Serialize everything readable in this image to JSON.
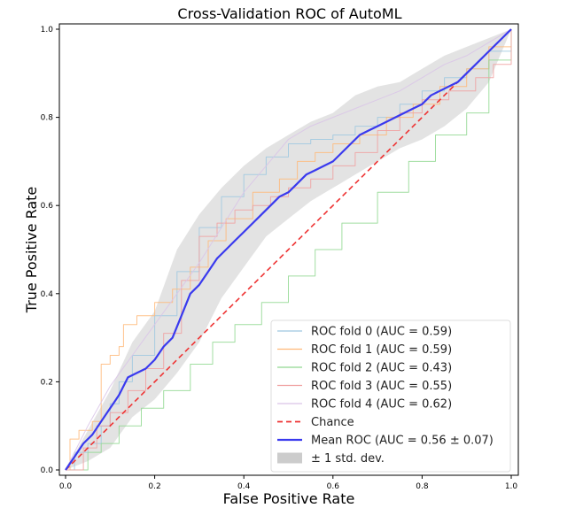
{
  "chart_data": {
    "type": "line",
    "title": "Cross-Validation ROC of AutoML",
    "xlabel": "False Positive Rate",
    "ylabel": "True Positive Rate",
    "xlim": [
      0.0,
      1.0
    ],
    "ylim": [
      0.0,
      1.0
    ],
    "xticks": [
      "0.0",
      "0.2",
      "0.4",
      "0.6",
      "0.8",
      "1.0"
    ],
    "yticks": [
      "0.0",
      "0.2",
      "0.4",
      "0.6",
      "0.8",
      "1.0"
    ],
    "grid": false,
    "legend_position": "lower-right",
    "series": [
      {
        "name": "ROC fold 0 (AUC = 0.59)",
        "color": "#9ec8e0",
        "style": "step",
        "x": [
          0.0,
          0.02,
          0.05,
          0.08,
          0.1,
          0.12,
          0.15,
          0.2,
          0.25,
          0.3,
          0.35,
          0.4,
          0.45,
          0.5,
          0.55,
          0.6,
          0.65,
          0.7,
          0.75,
          0.8,
          0.85,
          0.9,
          0.95,
          1.0
        ],
        "y": [
          0.0,
          0.04,
          0.06,
          0.1,
          0.15,
          0.2,
          0.26,
          0.35,
          0.45,
          0.55,
          0.62,
          0.67,
          0.71,
          0.74,
          0.75,
          0.76,
          0.78,
          0.8,
          0.83,
          0.86,
          0.89,
          0.91,
          0.95,
          1.0
        ]
      },
      {
        "name": "ROC fold 1 (AUC = 0.59)",
        "color": "#ffb878",
        "style": "step",
        "x": [
          0.0,
          0.01,
          0.03,
          0.06,
          0.08,
          0.1,
          0.12,
          0.13,
          0.16,
          0.2,
          0.24,
          0.28,
          0.32,
          0.36,
          0.42,
          0.48,
          0.52,
          0.56,
          0.6,
          0.66,
          0.72,
          0.78,
          0.84,
          0.9,
          0.95,
          1.0
        ],
        "y": [
          0.0,
          0.07,
          0.09,
          0.11,
          0.24,
          0.26,
          0.28,
          0.33,
          0.35,
          0.38,
          0.41,
          0.46,
          0.52,
          0.57,
          0.63,
          0.66,
          0.7,
          0.72,
          0.74,
          0.76,
          0.8,
          0.83,
          0.87,
          0.91,
          0.96,
          1.0
        ]
      },
      {
        "name": "ROC fold 2 (AUC = 0.43)",
        "color": "#90d890",
        "style": "step",
        "x": [
          0.0,
          0.05,
          0.08,
          0.12,
          0.17,
          0.22,
          0.28,
          0.33,
          0.38,
          0.44,
          0.5,
          0.56,
          0.62,
          0.7,
          0.77,
          0.83,
          0.9,
          0.95,
          1.0
        ],
        "y": [
          0.0,
          0.04,
          0.06,
          0.1,
          0.14,
          0.18,
          0.24,
          0.29,
          0.33,
          0.38,
          0.44,
          0.5,
          0.56,
          0.63,
          0.7,
          0.76,
          0.81,
          0.93,
          1.0
        ]
      },
      {
        "name": "ROC fold 3 (AUC = 0.55)",
        "color": "#f0a0a0",
        "style": "step",
        "x": [
          0.0,
          0.04,
          0.07,
          0.1,
          0.14,
          0.18,
          0.22,
          0.26,
          0.3,
          0.34,
          0.38,
          0.42,
          0.46,
          0.5,
          0.55,
          0.6,
          0.65,
          0.7,
          0.75,
          0.8,
          0.86,
          0.92,
          0.96,
          1.0
        ],
        "y": [
          0.0,
          0.05,
          0.1,
          0.13,
          0.18,
          0.23,
          0.31,
          0.43,
          0.53,
          0.56,
          0.59,
          0.6,
          0.62,
          0.64,
          0.66,
          0.69,
          0.72,
          0.77,
          0.81,
          0.84,
          0.86,
          0.89,
          0.92,
          1.0
        ]
      },
      {
        "name": "ROC fold 4 (AUC = 0.62)",
        "color": "#d9c4e8",
        "style": "line",
        "x": [
          0.0,
          0.05,
          0.1,
          0.15,
          0.2,
          0.25,
          0.3,
          0.35,
          0.4,
          0.45,
          0.5,
          0.55,
          0.6,
          0.65,
          0.7,
          0.75,
          0.8,
          0.85,
          0.9,
          0.95,
          1.0
        ],
        "y": [
          0.0,
          0.1,
          0.19,
          0.26,
          0.33,
          0.4,
          0.47,
          0.55,
          0.63,
          0.69,
          0.75,
          0.78,
          0.8,
          0.82,
          0.84,
          0.86,
          0.89,
          0.92,
          0.94,
          0.97,
          1.0
        ]
      },
      {
        "name": "Chance",
        "color": "#ee3333",
        "style": "dashed",
        "x": [
          0.0,
          1.0
        ],
        "y": [
          0.0,
          1.0
        ]
      },
      {
        "name": "Mean ROC (AUC = 0.56 ± 0.07)",
        "color": "#3a3aee",
        "style": "line-bold",
        "x": [
          0.0,
          0.02,
          0.04,
          0.06,
          0.08,
          0.1,
          0.12,
          0.14,
          0.16,
          0.18,
          0.2,
          0.22,
          0.24,
          0.26,
          0.28,
          0.3,
          0.32,
          0.34,
          0.36,
          0.38,
          0.4,
          0.42,
          0.44,
          0.46,
          0.48,
          0.5,
          0.52,
          0.54,
          0.56,
          0.58,
          0.6,
          0.62,
          0.64,
          0.66,
          0.68,
          0.7,
          0.72,
          0.74,
          0.76,
          0.78,
          0.8,
          0.82,
          0.84,
          0.86,
          0.88,
          0.9,
          0.92,
          0.94,
          0.96,
          0.98,
          1.0
        ],
        "y": [
          0.0,
          0.03,
          0.06,
          0.08,
          0.11,
          0.14,
          0.17,
          0.21,
          0.22,
          0.23,
          0.25,
          0.28,
          0.3,
          0.35,
          0.4,
          0.42,
          0.45,
          0.48,
          0.5,
          0.52,
          0.54,
          0.56,
          0.58,
          0.6,
          0.62,
          0.63,
          0.65,
          0.67,
          0.68,
          0.69,
          0.7,
          0.72,
          0.74,
          0.76,
          0.77,
          0.78,
          0.79,
          0.8,
          0.81,
          0.82,
          0.83,
          0.85,
          0.86,
          0.87,
          0.88,
          0.9,
          0.92,
          0.94,
          0.96,
          0.98,
          1.0
        ]
      }
    ],
    "band": {
      "name": "± 1 std. dev.",
      "color": "#cccccc",
      "x": [
        0.0,
        0.05,
        0.1,
        0.15,
        0.2,
        0.25,
        0.3,
        0.35,
        0.4,
        0.45,
        0.5,
        0.55,
        0.6,
        0.65,
        0.7,
        0.75,
        0.8,
        0.85,
        0.9,
        0.95,
        1.0
      ],
      "lower": [
        0.0,
        0.02,
        0.05,
        0.12,
        0.16,
        0.22,
        0.29,
        0.39,
        0.46,
        0.53,
        0.57,
        0.61,
        0.64,
        0.67,
        0.7,
        0.73,
        0.75,
        0.78,
        0.82,
        0.88,
        1.0
      ],
      "upper": [
        0.0,
        0.09,
        0.18,
        0.29,
        0.36,
        0.5,
        0.58,
        0.64,
        0.69,
        0.73,
        0.76,
        0.79,
        0.81,
        0.85,
        0.87,
        0.88,
        0.91,
        0.94,
        0.96,
        0.98,
        1.0
      ]
    },
    "legend": [
      {
        "label": "ROC fold 0 (AUC = 0.59)",
        "kind": "line",
        "color": "#9ec8e0"
      },
      {
        "label": "ROC fold 1 (AUC = 0.59)",
        "kind": "line",
        "color": "#ffb878"
      },
      {
        "label": "ROC fold 2 (AUC = 0.43)",
        "kind": "line",
        "color": "#90d890"
      },
      {
        "label": "ROC fold 3 (AUC = 0.55)",
        "kind": "line",
        "color": "#f0a0a0"
      },
      {
        "label": "ROC fold 4 (AUC = 0.62)",
        "kind": "line",
        "color": "#d9c4e8"
      },
      {
        "label": "Chance",
        "kind": "dashed",
        "color": "#ee3333"
      },
      {
        "label": "Mean ROC (AUC = 0.56 ± 0.07)",
        "kind": "bold",
        "color": "#3a3aee"
      },
      {
        "label": "± 1 std. dev.",
        "kind": "patch",
        "color": "#cccccc"
      }
    ]
  }
}
